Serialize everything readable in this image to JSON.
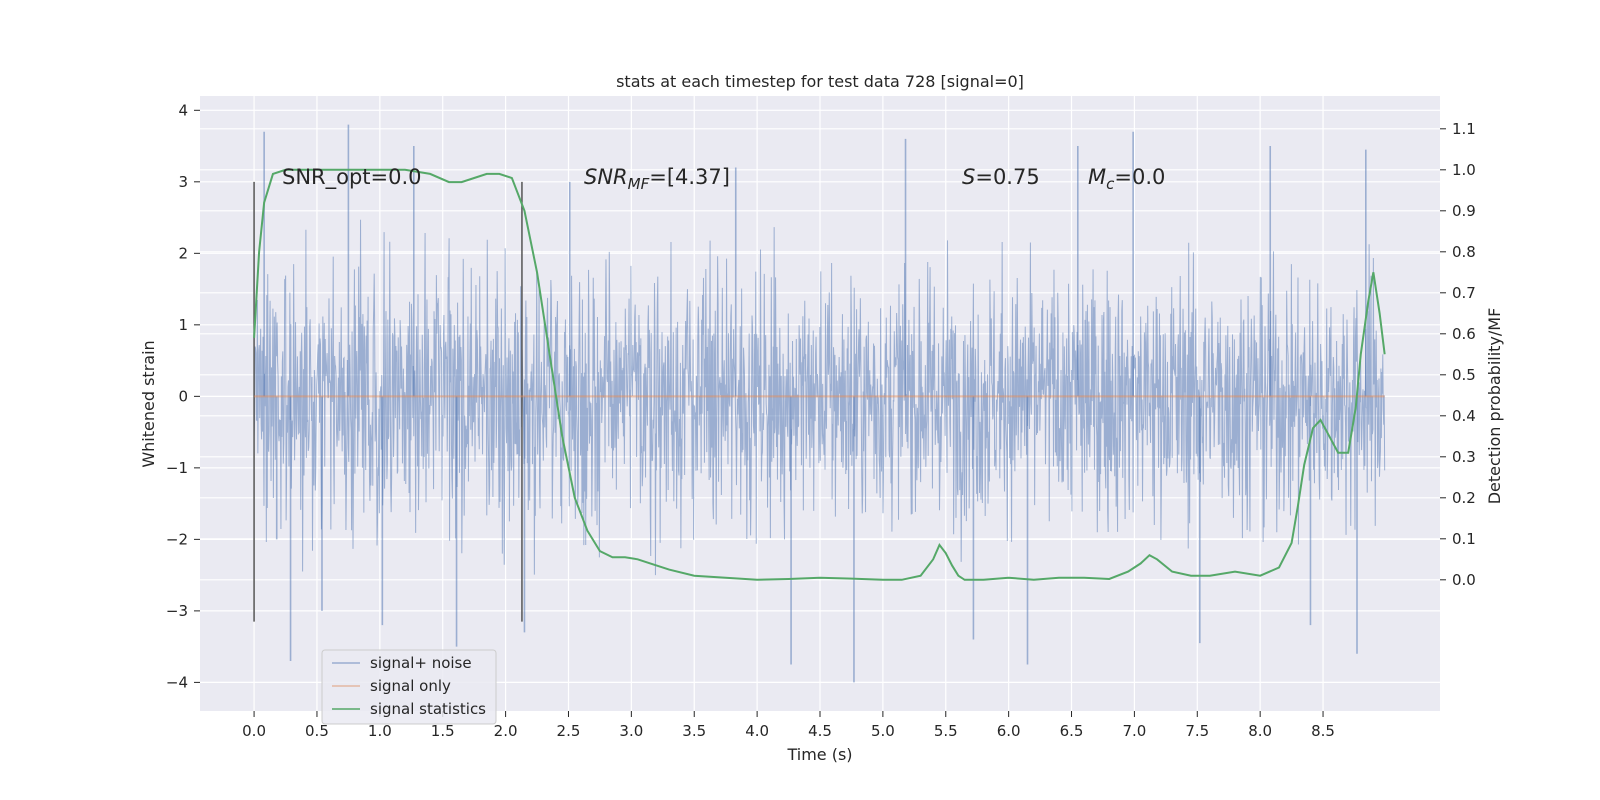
{
  "chart_data": {
    "type": "line",
    "title": "stats at each timestep for test data 728 [signal=0]",
    "xlabel": "Time (s)",
    "ylabel": "Whitened strain",
    "y2label": "Detection probability/MF",
    "xlim": [
      -0.43,
      9.43
    ],
    "ylim": [
      -4.4,
      4.2
    ],
    "y2lim": [
      -0.32,
      1.18
    ],
    "xticks": [
      "0.0",
      "0.5",
      "1.0",
      "1.5",
      "2.0",
      "2.5",
      "3.0",
      "3.5",
      "4.0",
      "4.5",
      "5.0",
      "5.5",
      "6.0",
      "6.5",
      "7.0",
      "7.5",
      "8.0",
      "8.5"
    ],
    "yticks": [
      "4",
      "3",
      "2",
      "1",
      "0",
      "−1",
      "−2",
      "−3",
      "−4"
    ],
    "y2ticks": [
      "1.1",
      "1.0",
      "0.9",
      "0.8",
      "0.7",
      "0.6",
      "0.5",
      "0.4",
      "0.3",
      "0.2",
      "0.1",
      "0.0"
    ],
    "grid": true,
    "legend_position": "lower-left",
    "annotations": {
      "snr_opt": "SNR_opt=0.0",
      "snr_mf_label": "SNR",
      "snr_mf_sub": "MF",
      "snr_mf_value": "=[4.37]",
      "s_label": "S",
      "s_value": "=0.75",
      "mc_label": "M",
      "mc_sub": "c",
      "mc_value": "=0.0"
    },
    "vertical_markers": [
      0.0,
      2.13
    ],
    "vertical_marker_range": [
      -3.15,
      3.0
    ],
    "series": [
      {
        "name": "signal+ noise",
        "color": "#4c72b0",
        "axis": "left",
        "description_kind": "noise",
        "x_range": [
          0.0,
          8.99
        ],
        "envelope": [
          [
            0.0,
            2.0,
            -2.6
          ],
          [
            0.5,
            2.4,
            -2.7
          ],
          [
            1.0,
            2.5,
            -2.6
          ],
          [
            1.5,
            2.2,
            -2.5
          ],
          [
            2.0,
            2.3,
            -2.6
          ],
          [
            2.5,
            2.4,
            -2.6
          ],
          [
            3.0,
            2.3,
            -2.5
          ],
          [
            3.5,
            2.6,
            -2.5
          ],
          [
            4.0,
            2.5,
            -2.6
          ],
          [
            4.5,
            2.5,
            -2.5
          ],
          [
            5.0,
            2.4,
            -2.6
          ],
          [
            5.5,
            2.5,
            -2.6
          ],
          [
            6.0,
            2.4,
            -2.5
          ],
          [
            6.5,
            2.6,
            -2.6
          ],
          [
            7.0,
            2.5,
            -2.6
          ],
          [
            7.5,
            2.5,
            -2.6
          ],
          [
            8.0,
            2.5,
            -2.5
          ],
          [
            8.5,
            2.5,
            -2.5
          ],
          [
            8.99,
            2.0,
            -2.0
          ]
        ],
        "spikes": [
          [
            0.08,
            3.7
          ],
          [
            0.18,
            -2.0
          ],
          [
            0.29,
            -3.7
          ],
          [
            0.54,
            -3.0
          ],
          [
            0.75,
            3.8
          ],
          [
            1.02,
            -3.2
          ],
          [
            1.27,
            3.5
          ],
          [
            1.61,
            -3.5
          ],
          [
            2.15,
            -3.3
          ],
          [
            2.51,
            3.0
          ],
          [
            3.83,
            3.2
          ],
          [
            4.27,
            -3.75
          ],
          [
            4.77,
            -4.0
          ],
          [
            5.18,
            3.6
          ],
          [
            5.72,
            -3.4
          ],
          [
            6.15,
            -3.75
          ],
          [
            6.55,
            3.5
          ],
          [
            6.99,
            3.7
          ],
          [
            7.52,
            -3.45
          ],
          [
            8.08,
            3.5
          ],
          [
            8.4,
            -3.2
          ],
          [
            8.77,
            -3.6
          ],
          [
            8.84,
            3.45
          ]
        ]
      },
      {
        "name": "signal only",
        "color": "#dd8452",
        "axis": "left",
        "x": [
          0.0,
          8.99
        ],
        "y": [
          0.0,
          0.0
        ]
      },
      {
        "name": "signal statistics",
        "color": "#55a868",
        "axis": "right",
        "x": [
          0.0,
          0.04,
          0.08,
          0.15,
          0.25,
          0.4,
          0.6,
          0.8,
          1.0,
          1.2,
          1.4,
          1.55,
          1.65,
          1.75,
          1.85,
          1.95,
          2.05,
          2.15,
          2.25,
          2.35,
          2.45,
          2.55,
          2.65,
          2.75,
          2.85,
          2.95,
          3.05,
          3.15,
          3.3,
          3.5,
          3.75,
          4.0,
          4.25,
          4.5,
          4.75,
          5.0,
          5.15,
          5.3,
          5.4,
          5.45,
          5.5,
          5.55,
          5.6,
          5.65,
          5.8,
          6.0,
          6.2,
          6.4,
          6.6,
          6.8,
          6.95,
          7.05,
          7.12,
          7.18,
          7.3,
          7.45,
          7.6,
          7.8,
          8.0,
          8.15,
          8.25,
          8.3,
          8.35,
          8.42,
          8.48,
          8.55,
          8.62,
          8.7,
          8.76,
          8.8,
          8.86,
          8.9,
          8.95,
          8.99
        ],
        "y": [
          0.59,
          0.8,
          0.92,
          0.99,
          1.0,
          1.0,
          1.0,
          1.0,
          1.0,
          1.0,
          0.99,
          0.97,
          0.97,
          0.98,
          0.99,
          0.99,
          0.98,
          0.9,
          0.75,
          0.55,
          0.35,
          0.2,
          0.12,
          0.07,
          0.055,
          0.055,
          0.05,
          0.04,
          0.025,
          0.01,
          0.005,
          0.0,
          0.002,
          0.005,
          0.003,
          0.0,
          0.0,
          0.01,
          0.05,
          0.085,
          0.065,
          0.035,
          0.01,
          0.0,
          0.0,
          0.005,
          0.0,
          0.005,
          0.005,
          0.002,
          0.02,
          0.04,
          0.06,
          0.05,
          0.02,
          0.01,
          0.01,
          0.02,
          0.01,
          0.03,
          0.09,
          0.18,
          0.28,
          0.37,
          0.39,
          0.35,
          0.31,
          0.31,
          0.42,
          0.55,
          0.68,
          0.75,
          0.65,
          0.55
        ]
      }
    ]
  }
}
